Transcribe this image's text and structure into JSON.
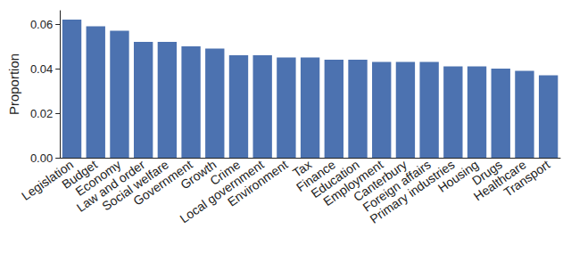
{
  "chart_data": {
    "type": "bar",
    "y_label": "Proportion",
    "categories": [
      "Legislation",
      "Budget",
      "Economy",
      "Law and order",
      "Social welfare",
      "Government",
      "Growth",
      "Crime",
      "Local government",
      "Environment",
      "Tax",
      "Finance",
      "Education",
      "Employment",
      "Canterbury",
      "Foreign affairs",
      "Primary industries",
      "Housing",
      "Drugs",
      "Healthcare",
      "Transport"
    ],
    "values": [
      0.062,
      0.059,
      0.057,
      0.052,
      0.052,
      0.05,
      0.049,
      0.046,
      0.046,
      0.045,
      0.045,
      0.044,
      0.044,
      0.043,
      0.043,
      0.043,
      0.041,
      0.041,
      0.04,
      0.039,
      0.037
    ],
    "color": "#4c72b0",
    "ylim": [
      0,
      0.066
    ],
    "yticks": [
      {
        "value": 0,
        "label": "0.00"
      },
      0.02,
      0.04,
      0.06
    ],
    "grid": false
  }
}
